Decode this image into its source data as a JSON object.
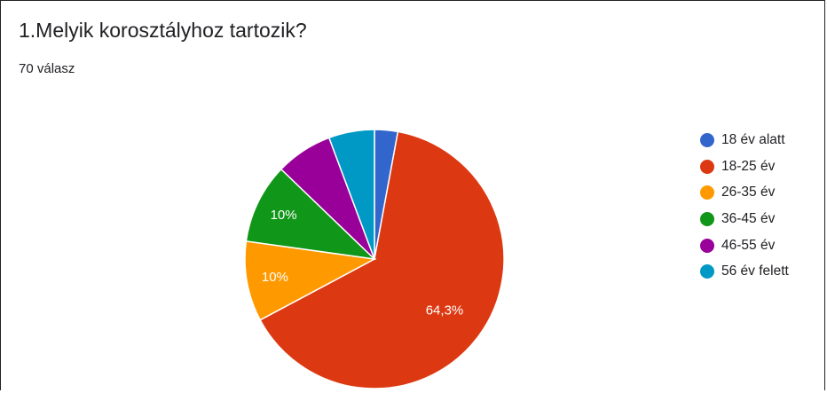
{
  "question_title": "1.Melyik korosztályhoz tartozik?",
  "response_count": "70 válasz",
  "chart_data": {
    "type": "pie",
    "title": "1.Melyik korosztályhoz tartozik?",
    "legend_position": "right",
    "start_angle_deg": 90,
    "categories": [
      "18 év alatt",
      "18-25 év",
      "26-35 év",
      "36-45 év",
      "46-55 év",
      "56 év felett"
    ],
    "values": [
      2.9,
      64.3,
      10.0,
      10.0,
      7.1,
      5.7
    ],
    "data_labels": [
      "",
      "64,3%",
      "10%",
      "10%",
      "",
      ""
    ],
    "colors": [
      "#3366cc",
      "#dc3912",
      "#ff9900",
      "#109618",
      "#990099",
      "#0099c6"
    ]
  }
}
